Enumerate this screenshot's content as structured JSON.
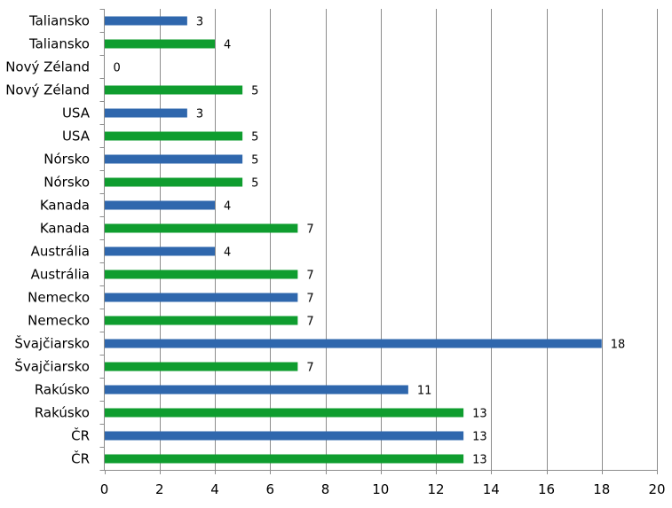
{
  "chart_data": {
    "type": "bar",
    "orientation": "horizontal",
    "title": "",
    "xlabel": "",
    "ylabel": "",
    "xlim": [
      0,
      20
    ],
    "x_ticks": [
      0,
      2,
      4,
      6,
      8,
      10,
      12,
      14,
      16,
      18,
      20
    ],
    "grid": "vertical",
    "legend": "none",
    "colors": {
      "blue": "#2f67ad",
      "green": "#0f9d2f"
    },
    "bars": [
      {
        "category": "Taliansko",
        "value": 3,
        "color": "blue"
      },
      {
        "category": "Taliansko",
        "value": 4,
        "color": "green"
      },
      {
        "category": "Nový Zéland",
        "value": 0,
        "color": "blue"
      },
      {
        "category": "Nový Zéland",
        "value": 5,
        "color": "green"
      },
      {
        "category": "USA",
        "value": 3,
        "color": "blue"
      },
      {
        "category": "USA",
        "value": 5,
        "color": "green"
      },
      {
        "category": "Nórsko",
        "value": 5,
        "color": "blue"
      },
      {
        "category": "Nórsko",
        "value": 5,
        "color": "green"
      },
      {
        "category": "Kanada",
        "value": 4,
        "color": "blue"
      },
      {
        "category": "Kanada",
        "value": 7,
        "color": "green"
      },
      {
        "category": "Austrália",
        "value": 4,
        "color": "blue"
      },
      {
        "category": "Austrália",
        "value": 7,
        "color": "green"
      },
      {
        "category": "Nemecko",
        "value": 7,
        "color": "blue"
      },
      {
        "category": "Nemecko",
        "value": 7,
        "color": "green"
      },
      {
        "category": "Švajčiarsko",
        "value": 18,
        "color": "blue"
      },
      {
        "category": "Švajčiarsko",
        "value": 7,
        "color": "green"
      },
      {
        "category": "Rakúsko",
        "value": 11,
        "color": "blue"
      },
      {
        "category": "Rakúsko",
        "value": 13,
        "color": "green"
      },
      {
        "category": "ČR",
        "value": 13,
        "color": "blue"
      },
      {
        "category": "ČR",
        "value": 13,
        "color": "green"
      }
    ]
  }
}
